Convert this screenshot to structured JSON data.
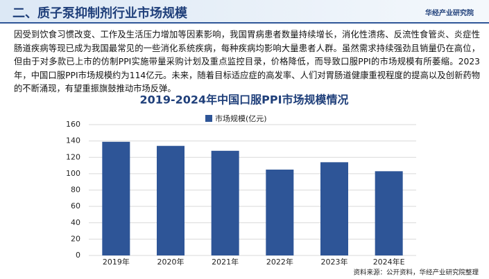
{
  "header": {
    "title": "二、质子泵抑制剂行业市场规模",
    "logo": "华经产业研究院"
  },
  "paragraph": "因受到饮食习惯改变、工作及生活压力增加等因素影响，我国胃病患者数量持续增长，消化性溃疡、反流性食管炎、炎症性肠道疾病等现已成为我国最常见的一些消化系统疾病，每种疾病均影响大量患者人群。虽然需求持续强劲且销量仍在高位，但由于对多款已上市的仿制PPI实施带量采购计划及重点监控目录，价格降低，而导致口服PPI的市场规模有所萎缩。2023年，中国口服PPI市场规模约为114亿元。未来，随着目标适应症的高发率、人们对胃肠道健康重视程度的提高以及创新药物的不断涌现，有望重振旗鼓推动市场反弹。",
  "chart_data": {
    "type": "bar",
    "title": "2019-2024年中国口服PPI市场规模情况",
    "categories": [
      "2019年",
      "2020年",
      "2021年",
      "2022年",
      "2023年",
      "2024年E"
    ],
    "series": [
      {
        "name": "市场规模(亿元)",
        "color": "#2e5597",
        "values": [
          139,
          134,
          128,
          105,
          114,
          103
        ]
      }
    ],
    "ylim": [
      0,
      160
    ],
    "yticks": [
      0,
      20,
      40,
      60,
      80,
      100,
      120,
      140,
      160
    ],
    "grid": true
  },
  "source": "资料来源：公开资料，华经产业研究院整理"
}
